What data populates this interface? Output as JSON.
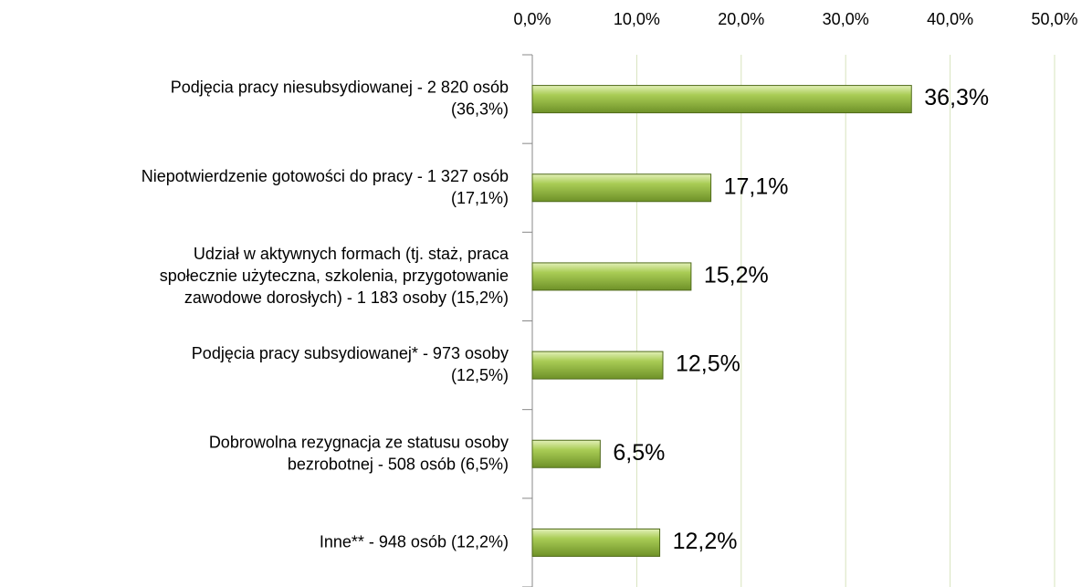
{
  "chart_data": {
    "type": "bar",
    "orientation": "horizontal",
    "categories": [
      [
        "Podjęcia pracy niesubsydiowanej - 2 820 osób",
        "(36,3%)"
      ],
      [
        "Niepotwierdzenie gotowości do pracy - 1 327 osób",
        "(17,1%)"
      ],
      [
        "Udział w aktywnych formach (tj. staż, praca",
        "społecznie użyteczna, szkolenia, przygotowanie",
        "zawodowe dorosłych) - 1 183 osoby (15,2%)"
      ],
      [
        "Podjęcia pracy subsydiowanej* - 973 osoby",
        "(12,5%)"
      ],
      [
        "Dobrowolna rezygnacja ze statusu osoby",
        "bezrobotnej - 508 osób (6,5%)"
      ],
      [
        "Inne** - 948 osób (12,2%)"
      ]
    ],
    "values": [
      36.3,
      17.1,
      15.2,
      12.5,
      6.5,
      12.2
    ],
    "value_labels": [
      "36,3%",
      "17,1%",
      "15,2%",
      "12,5%",
      "6,5%",
      "12,2%"
    ],
    "color": "#8db33a",
    "xlim": [
      0,
      50
    ],
    "xticks": [
      {
        "value": 0,
        "label": "0,0%"
      },
      {
        "value": 10,
        "label": "10,0%"
      },
      {
        "value": 20,
        "label": "20,0%"
      },
      {
        "value": 30,
        "label": "30,0%"
      },
      {
        "value": 40,
        "label": "40,0%"
      },
      {
        "value": 50,
        "label": "50,0%"
      }
    ],
    "grid": true
  }
}
